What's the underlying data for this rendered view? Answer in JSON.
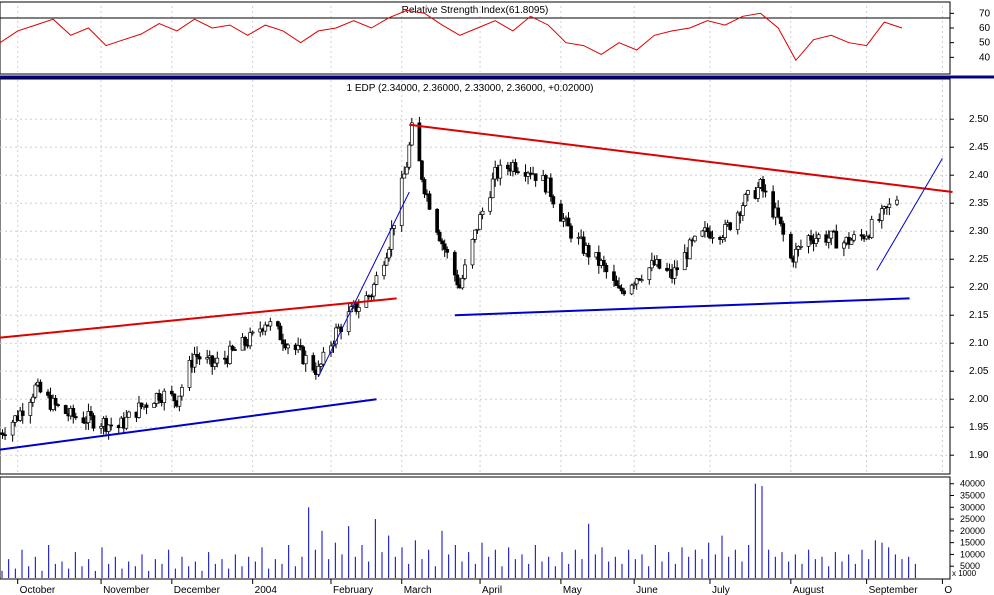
{
  "chart_data": [
    {
      "panel": "rsi",
      "type": "line",
      "title": "Relative Strength Index(61.8095)",
      "ylim": [
        30,
        75
      ],
      "yticks": [
        40,
        50,
        60,
        70
      ],
      "reference_lines": [
        70,
        30
      ],
      "series": [
        {
          "color": "#dd0000",
          "x": [
            "2003-09-24",
            "2003-10-01",
            "2003-10-08",
            "2003-10-15",
            "2003-10-22",
            "2003-10-29",
            "2003-11-05",
            "2003-11-12",
            "2003-11-19",
            "2003-11-26",
            "2003-12-03",
            "2003-12-10",
            "2003-12-17",
            "2003-12-24",
            "2003-12-31",
            "2004-01-07",
            "2004-01-14",
            "2004-01-21",
            "2004-01-28",
            "2004-02-04",
            "2004-02-11",
            "2004-02-18",
            "2004-02-25",
            "2004-03-03",
            "2004-03-10",
            "2004-03-17",
            "2004-03-24",
            "2004-03-31",
            "2004-04-07",
            "2004-04-14",
            "2004-04-21",
            "2004-04-28",
            "2004-05-05",
            "2004-05-12",
            "2004-05-19",
            "2004-05-26",
            "2004-06-02",
            "2004-06-09",
            "2004-06-16",
            "2004-06-23",
            "2004-06-30",
            "2004-07-07",
            "2004-07-14",
            "2004-07-21",
            "2004-07-28",
            "2004-08-04",
            "2004-08-11",
            "2004-08-18",
            "2004-08-25",
            "2004-09-01",
            "2004-09-08",
            "2004-09-15"
          ],
          "values": [
            50,
            58,
            62,
            66,
            55,
            60,
            48,
            52,
            56,
            63,
            58,
            66,
            60,
            62,
            55,
            62,
            58,
            50,
            58,
            60,
            65,
            60,
            67,
            72,
            70,
            62,
            55,
            60,
            65,
            58,
            68,
            62,
            50,
            48,
            42,
            50,
            45,
            55,
            58,
            60,
            65,
            62,
            68,
            70,
            60,
            38,
            52,
            55,
            50,
            48,
            64,
            60
          ]
        }
      ]
    },
    {
      "panel": "price",
      "type": "ohlc",
      "title": "1 EDP (2.34000, 2.36000, 2.33000, 2.36000, +0.02000)",
      "ylim": [
        1.87,
        2.57
      ],
      "yticks": [
        1.9,
        1.95,
        2.0,
        2.05,
        2.1,
        2.15,
        2.2,
        2.25,
        2.3,
        2.35,
        2.4,
        2.45,
        2.5
      ],
      "x_range": [
        "2003-09-24",
        "2004-10-04"
      ],
      "month_labels": [
        {
          "label": "October",
          "date": "2003-10-01"
        },
        {
          "label": "November",
          "date": "2003-11-03"
        },
        {
          "label": "December",
          "date": "2003-12-01"
        },
        {
          "label": "2004",
          "date": "2004-01-02"
        },
        {
          "label": "February",
          "date": "2004-02-02"
        },
        {
          "label": "March",
          "date": "2004-03-01"
        },
        {
          "label": "April",
          "date": "2004-04-01"
        },
        {
          "label": "May",
          "date": "2004-05-03"
        },
        {
          "label": "June",
          "date": "2004-06-01"
        },
        {
          "label": "July",
          "date": "2004-07-01"
        },
        {
          "label": "August",
          "date": "2004-08-02"
        },
        {
          "label": "September",
          "date": "2004-09-01"
        },
        {
          "label": "O",
          "date": "2004-10-01"
        }
      ],
      "close_path": [
        [
          "2003-09-24",
          1.94
        ],
        [
          "2003-10-01",
          1.97
        ],
        [
          "2003-10-08",
          2.02
        ],
        [
          "2003-10-15",
          1.99
        ],
        [
          "2003-10-22",
          1.97
        ],
        [
          "2003-11-03",
          1.96
        ],
        [
          "2003-11-10",
          1.95
        ],
        [
          "2003-11-17",
          1.98
        ],
        [
          "2003-11-26",
          2.01
        ],
        [
          "2003-12-03",
          2.0
        ],
        [
          "2003-12-10",
          2.08
        ],
        [
          "2003-12-17",
          2.06
        ],
        [
          "2003-12-24",
          2.08
        ],
        [
          "2004-01-02",
          2.11
        ],
        [
          "2004-01-07",
          2.14
        ],
        [
          "2004-01-14",
          2.11
        ],
        [
          "2004-01-21",
          2.08
        ],
        [
          "2004-01-28",
          2.05
        ],
        [
          "2004-02-04",
          2.12
        ],
        [
          "2004-02-11",
          2.16
        ],
        [
          "2004-02-18",
          2.19
        ],
        [
          "2004-02-25",
          2.28
        ],
        [
          "2004-03-03",
          2.42
        ],
        [
          "2004-03-05",
          2.48
        ],
        [
          "2004-03-10",
          2.38
        ],
        [
          "2004-03-17",
          2.28
        ],
        [
          "2004-03-24",
          2.2
        ],
        [
          "2004-03-31",
          2.31
        ],
        [
          "2004-04-07",
          2.4
        ],
        [
          "2004-04-14",
          2.42
        ],
        [
          "2004-04-21",
          2.41
        ],
        [
          "2004-04-28",
          2.38
        ],
        [
          "2004-05-05",
          2.31
        ],
        [
          "2004-05-12",
          2.27
        ],
        [
          "2004-05-19",
          2.24
        ],
        [
          "2004-05-26",
          2.19
        ],
        [
          "2004-06-02",
          2.22
        ],
        [
          "2004-06-09",
          2.24
        ],
        [
          "2004-06-16",
          2.22
        ],
        [
          "2004-06-23",
          2.27
        ],
        [
          "2004-06-30",
          2.3
        ],
        [
          "2004-07-07",
          2.3
        ],
        [
          "2004-07-14",
          2.35
        ],
        [
          "2004-07-21",
          2.38
        ],
        [
          "2004-07-28",
          2.32
        ],
        [
          "2004-08-02",
          2.25
        ],
        [
          "2004-08-09",
          2.29
        ],
        [
          "2004-08-16",
          2.29
        ],
        [
          "2004-08-23",
          2.28
        ],
        [
          "2004-08-30",
          2.29
        ],
        [
          "2004-09-06",
          2.32
        ],
        [
          "2004-09-13",
          2.36
        ]
      ],
      "trendlines": [
        {
          "color": "#dd0000",
          "from": [
            "2003-09-24",
            2.11
          ],
          "to": [
            "2004-02-28",
            2.18
          ]
        },
        {
          "color": "#0000cc",
          "from": [
            "2003-09-24",
            1.91
          ],
          "to": [
            "2004-02-20",
            2.0
          ]
        },
        {
          "color": "#dd0000",
          "from": [
            "2004-03-04",
            2.49
          ],
          "to": [
            "2004-10-05",
            2.37
          ]
        },
        {
          "color": "#0000cc",
          "from": [
            "2004-03-22",
            2.15
          ],
          "to": [
            "2004-09-18",
            2.18
          ]
        },
        {
          "color": "#0000cc",
          "from": [
            "2004-01-28",
            2.04
          ],
          "to": [
            "2004-03-04",
            2.37
          ]
        },
        {
          "color": "#0000cc",
          "from": [
            "2004-09-05",
            2.23
          ],
          "to": [
            "2004-10-01",
            2.43
          ]
        }
      ]
    },
    {
      "panel": "volume",
      "type": "bar",
      "ylim": [
        0,
        42000
      ],
      "yticks": [
        5000,
        10000,
        15000,
        20000,
        25000,
        30000,
        35000,
        40000
      ],
      "unit_label": "x 1000",
      "color": "#0000cc",
      "values": [
        3000,
        8000,
        4000,
        12000,
        5000,
        9000,
        3000,
        14000,
        6000,
        7000,
        4000,
        11000,
        5000,
        8000,
        3000,
        13000,
        6000,
        9000,
        4000,
        7000,
        5000,
        10000,
        3000,
        8000,
        6000,
        12000,
        4000,
        9000,
        5000,
        7000,
        3000,
        11000,
        6000,
        8000,
        4000,
        10000,
        5000,
        9000,
        7000,
        13000,
        4000,
        8000,
        6000,
        14000,
        5000,
        9000,
        30000,
        12000,
        20000,
        8000,
        15000,
        10000,
        22000,
        9000,
        14000,
        7000,
        25000,
        11000,
        18000,
        9000,
        13000,
        6000,
        16000,
        8000,
        12000,
        5000,
        20000,
        10000,
        14000,
        7000,
        11000,
        6000,
        15000,
        9000,
        12000,
        5000,
        13000,
        8000,
        10000,
        6000,
        14000,
        7000,
        9000,
        5000,
        11000,
        6000,
        12000,
        8000,
        23000,
        10000,
        13000,
        7000,
        9000,
        6000,
        12000,
        8000,
        10000,
        5000,
        14000,
        7000,
        11000,
        6000,
        13000,
        9000,
        12000,
        8000,
        15000,
        10000,
        18000,
        9000,
        12000,
        7000,
        14000,
        40000,
        39000,
        12000,
        9000,
        11000,
        7000,
        10000,
        6000,
        12000,
        8000,
        9000,
        5000,
        11000,
        7000,
        10000,
        6000,
        12000,
        8000,
        16000,
        15000,
        13000,
        10000,
        8000,
        9000,
        6000
      ]
    }
  ]
}
